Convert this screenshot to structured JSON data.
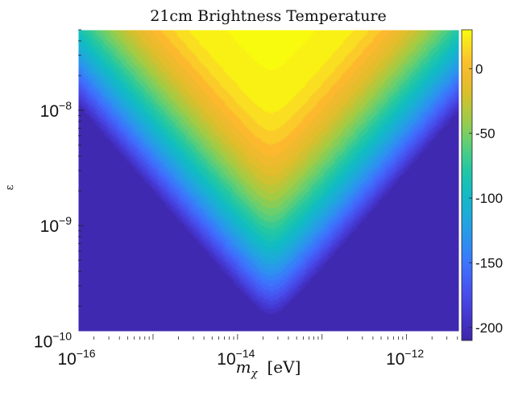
{
  "chart_data": {
    "type": "heatmap",
    "title": "21cm Brightness Temperature",
    "xlabel_symbol": "m",
    "xlabel_subscript": "χ",
    "xlabel_unit": "[eV]",
    "ylabel": "ε",
    "x_scale": "log",
    "y_scale": "log",
    "xlim": [
      1.3e-16,
      4.2e-12
    ],
    "ylim": [
      1.2e-10,
      5e-08
    ],
    "x_ticks": [
      {
        "value": 1e-16,
        "base": "10",
        "exp": "−16"
      },
      {
        "value": 1e-14,
        "base": "10",
        "exp": "−14"
      },
      {
        "value": 1e-12,
        "base": "10",
        "exp": "−12"
      }
    ],
    "y_ticks": [
      {
        "value": 1e-10,
        "base": "10",
        "exp": "−10"
      },
      {
        "value": 1e-09,
        "base": "10",
        "exp": "−9"
      },
      {
        "value": 1e-08,
        "base": "10",
        "exp": "−8"
      }
    ],
    "colorbar": {
      "range": [
        -210,
        30
      ],
      "ticks": [
        {
          "value": 0,
          "label": "0"
        },
        {
          "value": -50,
          "label": "-50"
        },
        {
          "value": -100,
          "label": "-100"
        },
        {
          "value": -150,
          "label": "-150"
        },
        {
          "value": -200,
          "label": "-200"
        }
      ]
    },
    "colormap": "parula",
    "surface": {
      "description_of_model": "V-shaped contour field",
      "apex_mass_eV": 2.5e-14,
      "apex_epsilon": 1.2e-10,
      "peak_value": 30,
      "floor_value": -210,
      "levels": 30
    },
    "grid": false
  }
}
